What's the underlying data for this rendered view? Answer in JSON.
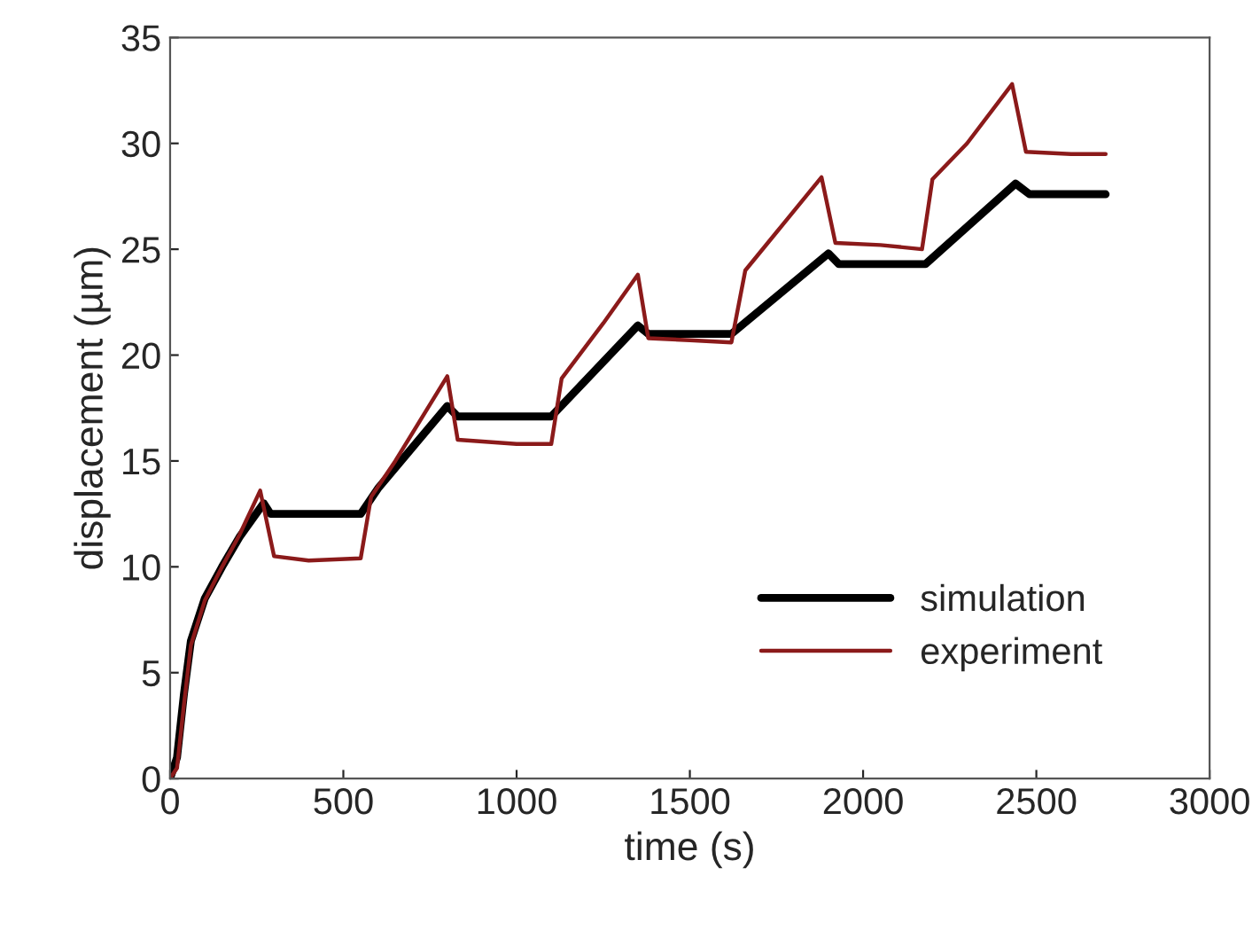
{
  "chart_data": {
    "type": "line",
    "xlabel": "time (s)",
    "ylabel": "displacement (µm)",
    "xlim": [
      0,
      3000
    ],
    "xticks": [
      0,
      500,
      1000,
      1500,
      2000,
      2500,
      3000
    ],
    "ylim": [
      0,
      35
    ],
    "yticks": [
      0,
      5,
      10,
      15,
      20,
      25,
      30,
      35
    ],
    "grid": false,
    "legend": "bottom right",
    "marker": "none",
    "line_style": "solid",
    "series": [
      {
        "name": "simulation",
        "color": "#000000",
        "x": [
          0,
          20,
          40,
          60,
          100,
          150,
          200,
          270,
          290,
          550,
          600,
          800,
          830,
          1100,
          1350,
          1380,
          1620,
          1900,
          1930,
          2180,
          2440,
          2480,
          2700
        ],
        "values": [
          0,
          1,
          4,
          6.5,
          8.5,
          10,
          11.4,
          13,
          12.5,
          12.5,
          13.7,
          17.6,
          17.1,
          17.1,
          21.4,
          21,
          21,
          24.8,
          24.3,
          24.3,
          28.1,
          27.6,
          27.6
        ]
      },
      {
        "name": "experiment",
        "color": "#8b1a1a",
        "x": [
          0,
          20,
          40,
          60,
          100,
          150,
          200,
          260,
          300,
          400,
          550,
          580,
          650,
          800,
          830,
          1000,
          1100,
          1130,
          1250,
          1350,
          1380,
          1500,
          1620,
          1660,
          1750,
          1880,
          1920,
          2050,
          2170,
          2200,
          2300,
          2430,
          2470,
          2600,
          2700
        ],
        "values": [
          0,
          0.5,
          3.5,
          6.3,
          8.4,
          10,
          11.5,
          13.6,
          10.5,
          10.3,
          10.4,
          13.3,
          15,
          19,
          16,
          15.8,
          15.8,
          18.9,
          21.5,
          23.8,
          20.8,
          20.7,
          20.6,
          24,
          25.8,
          28.4,
          25.3,
          25.2,
          25,
          28.3,
          30,
          32.8,
          29.6,
          29.5,
          29.5
        ]
      }
    ]
  }
}
